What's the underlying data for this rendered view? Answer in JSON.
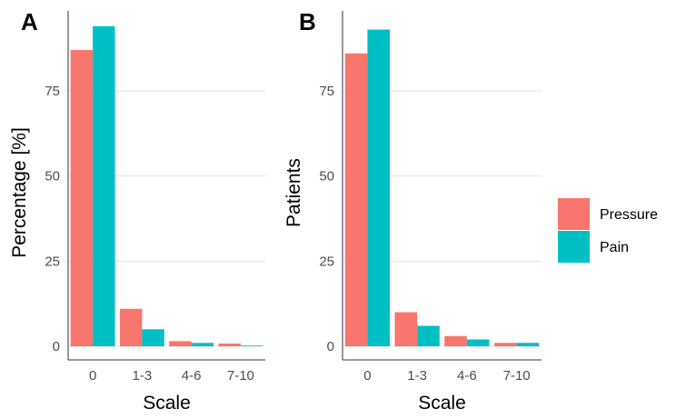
{
  "chart_data": [
    {
      "type": "bar",
      "panel_label": "A",
      "categories": [
        "0",
        "1-3",
        "4-6",
        "7-10"
      ],
      "series": [
        {
          "name": "Pressure",
          "values": [
            87,
            11,
            1.5,
            0.8
          ]
        },
        {
          "name": "Pain",
          "values": [
            94,
            5,
            1,
            0.2
          ]
        }
      ],
      "xlabel": "Scale",
      "ylabel": "Percentage [%]",
      "ylim": [
        0,
        100
      ],
      "yticks": [
        0,
        25,
        50,
        75
      ]
    },
    {
      "type": "bar",
      "panel_label": "B",
      "categories": [
        "0",
        "1-3",
        "4-6",
        "7-10"
      ],
      "series": [
        {
          "name": "Pressure",
          "values": [
            86,
            10,
            3,
            1
          ]
        },
        {
          "name": "Pain",
          "values": [
            93,
            6,
            2,
            1
          ]
        }
      ],
      "xlabel": "Scale",
      "ylabel": "Patients",
      "ylim": [
        0,
        100
      ],
      "yticks": [
        0,
        25,
        50,
        75
      ]
    }
  ],
  "legend": {
    "placement": "right",
    "items": [
      {
        "name": "Pressure",
        "color": "#f8766d"
      },
      {
        "name": "Pain",
        "color": "#00bfc4"
      }
    ]
  }
}
